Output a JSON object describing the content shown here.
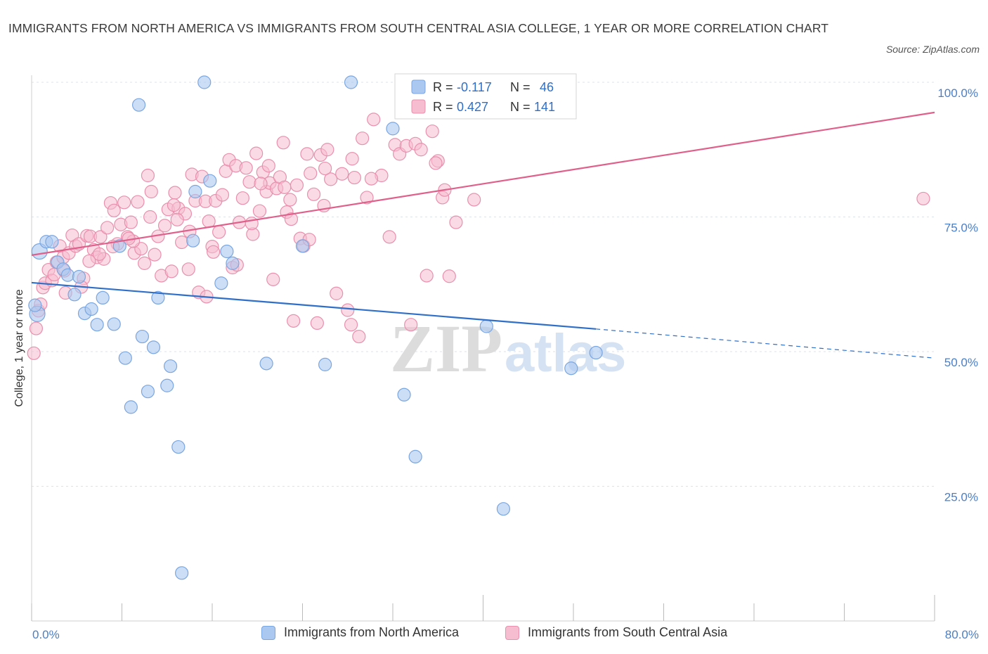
{
  "title": "IMMIGRANTS FROM NORTH AMERICA VS IMMIGRANTS FROM SOUTH CENTRAL ASIA COLLEGE, 1 YEAR OR MORE CORRELATION CHART",
  "source": "Source: ZipAtlas.com",
  "watermark": {
    "zip": "ZIP",
    "atlas": "atlas"
  },
  "colors": {
    "blue_fill": "#aac8f0",
    "blue_stroke": "#7aa6e0",
    "blue_line": "#2f6fc8",
    "pink_fill": "#f6bcd0",
    "pink_stroke": "#e890ad",
    "pink_line": "#e0608c",
    "axis_text": "#4a7fc8",
    "grid": "#dde2ea"
  },
  "legend": {
    "rows": [
      {
        "r_label": "R =",
        "r_value": "-0.117",
        "n_label": "N =",
        "n_value": "46"
      },
      {
        "r_label": "R =",
        "r_value": "0.427",
        "n_label": "N =",
        "n_value": "141"
      }
    ]
  },
  "chart_data": {
    "type": "scatter",
    "title": "IMMIGRANTS FROM NORTH AMERICA VS IMMIGRANTS FROM SOUTH CENTRAL ASIA COLLEGE, 1 YEAR OR MORE CORRELATION CHART",
    "xlabel": "",
    "ylabel": "College, 1 year or more",
    "xlim": [
      0,
      80
    ],
    "ylim": [
      0,
      100
    ],
    "x_tick_labels": [
      "0.0%",
      "80.0%"
    ],
    "y_tick_labels": [
      "100.0%",
      "75.0%",
      "50.0%",
      "25.0%"
    ],
    "y_ticks": [
      100,
      75,
      50,
      25
    ],
    "grid": true,
    "legend_position": "top-center",
    "series": [
      {
        "name": "Immigrants from North America",
        "r": -0.117,
        "n": 46,
        "trend": {
          "x0": 0,
          "y0": 62.8,
          "x1": 50,
          "y1": 54.2,
          "dashed_to_x": 80,
          "dashed_to_y": 48.8
        },
        "points": [
          [
            0.5,
            57.0
          ],
          [
            0.7,
            68.6
          ],
          [
            1.3,
            70.4
          ],
          [
            1.8,
            70.4
          ],
          [
            2.3,
            66.6
          ],
          [
            2.8,
            65.3
          ],
          [
            3.2,
            64.2
          ],
          [
            3.8,
            60.6
          ],
          [
            4.2,
            63.9
          ],
          [
            4.7,
            57.1
          ],
          [
            5.3,
            57.9
          ],
          [
            5.8,
            55.0
          ],
          [
            6.3,
            60.0
          ],
          [
            7.3,
            55.1
          ],
          [
            7.8,
            69.6
          ],
          [
            8.3,
            48.8
          ],
          [
            8.8,
            39.7
          ],
          [
            9.5,
            95.8
          ],
          [
            9.8,
            52.8
          ],
          [
            10.3,
            42.6
          ],
          [
            10.8,
            50.8
          ],
          [
            11.2,
            60.0
          ],
          [
            12.0,
            43.7
          ],
          [
            12.3,
            47.3
          ],
          [
            13.0,
            32.3
          ],
          [
            13.3,
            8.9
          ],
          [
            14.3,
            70.6
          ],
          [
            14.5,
            79.7
          ],
          [
            15.3,
            100.0
          ],
          [
            15.8,
            81.7
          ],
          [
            16.8,
            62.7
          ],
          [
            17.3,
            68.6
          ],
          [
            17.8,
            66.4
          ],
          [
            20.8,
            47.8
          ],
          [
            24.0,
            69.6
          ],
          [
            26.0,
            47.6
          ],
          [
            28.3,
            100.0
          ],
          [
            32.0,
            91.4
          ],
          [
            33.0,
            42.0
          ],
          [
            33.3,
            100.0
          ],
          [
            34.0,
            30.5
          ],
          [
            40.3,
            54.7
          ],
          [
            41.8,
            20.8
          ],
          [
            47.8,
            46.9
          ],
          [
            50.0,
            49.8
          ],
          [
            0.3,
            58.6
          ]
        ]
      },
      {
        "name": "Immigrants from South Central Asia",
        "r": 0.427,
        "n": 141,
        "trend": {
          "x0": 0,
          "y0": 67.9,
          "x1": 80,
          "y1": 94.4
        },
        "points": [
          [
            0.2,
            49.7
          ],
          [
            0.4,
            54.3
          ],
          [
            0.6,
            57.6
          ],
          [
            0.8,
            58.8
          ],
          [
            1.0,
            61.9
          ],
          [
            1.2,
            62.7
          ],
          [
            1.5,
            65.2
          ],
          [
            1.8,
            63.2
          ],
          [
            2.0,
            64.3
          ],
          [
            2.2,
            66.6
          ],
          [
            2.5,
            69.6
          ],
          [
            2.8,
            67.5
          ],
          [
            3.0,
            60.9
          ],
          [
            3.3,
            68.3
          ],
          [
            3.6,
            71.6
          ],
          [
            3.9,
            69.6
          ],
          [
            4.2,
            70.0
          ],
          [
            4.6,
            63.6
          ],
          [
            4.9,
            71.5
          ],
          [
            5.2,
            71.4
          ],
          [
            5.5,
            68.9
          ],
          [
            5.8,
            67.5
          ],
          [
            6.1,
            71.3
          ],
          [
            6.4,
            67.2
          ],
          [
            6.7,
            73.0
          ],
          [
            7.0,
            77.6
          ],
          [
            7.3,
            76.2
          ],
          [
            7.6,
            70.0
          ],
          [
            7.9,
            73.6
          ],
          [
            8.2,
            77.7
          ],
          [
            8.5,
            71.3
          ],
          [
            8.8,
            74.0
          ],
          [
            9.1,
            68.3
          ],
          [
            9.4,
            77.8
          ],
          [
            9.7,
            69.1
          ],
          [
            10.0,
            66.4
          ],
          [
            10.3,
            82.7
          ],
          [
            10.6,
            79.7
          ],
          [
            10.9,
            68.0
          ],
          [
            11.2,
            71.4
          ],
          [
            11.5,
            64.1
          ],
          [
            11.8,
            73.4
          ],
          [
            12.1,
            76.4
          ],
          [
            12.4,
            64.9
          ],
          [
            12.7,
            79.5
          ],
          [
            13.0,
            76.6
          ],
          [
            13.3,
            70.3
          ],
          [
            13.6,
            75.6
          ],
          [
            13.9,
            65.3
          ],
          [
            14.2,
            82.9
          ],
          [
            14.5,
            78.0
          ],
          [
            14.8,
            61.0
          ],
          [
            15.1,
            82.5
          ],
          [
            15.4,
            77.9
          ],
          [
            15.7,
            74.2
          ],
          [
            16.0,
            69.5
          ],
          [
            16.3,
            78.0
          ],
          [
            16.6,
            72.2
          ],
          [
            16.9,
            79.1
          ],
          [
            17.2,
            83.5
          ],
          [
            17.5,
            85.6
          ],
          [
            17.8,
            65.6
          ],
          [
            18.1,
            84.5
          ],
          [
            18.4,
            74.0
          ],
          [
            18.7,
            78.5
          ],
          [
            19.0,
            84.1
          ],
          [
            19.3,
            81.5
          ],
          [
            19.6,
            71.8
          ],
          [
            19.9,
            86.8
          ],
          [
            20.2,
            76.1
          ],
          [
            20.5,
            83.3
          ],
          [
            20.8,
            79.7
          ],
          [
            21.1,
            81.3
          ],
          [
            21.4,
            63.4
          ],
          [
            21.7,
            80.3
          ],
          [
            22.0,
            82.4
          ],
          [
            22.3,
            88.8
          ],
          [
            22.6,
            75.9
          ],
          [
            22.9,
            78.2
          ],
          [
            23.2,
            55.7
          ],
          [
            23.5,
            80.9
          ],
          [
            23.8,
            71.0
          ],
          [
            24.1,
            69.6
          ],
          [
            24.4,
            86.7
          ],
          [
            24.7,
            83.1
          ],
          [
            25.0,
            79.2
          ],
          [
            25.3,
            55.3
          ],
          [
            25.6,
            86.5
          ],
          [
            25.9,
            77.1
          ],
          [
            26.2,
            87.5
          ],
          [
            26.5,
            82.0
          ],
          [
            27.0,
            60.8
          ],
          [
            27.5,
            83.0
          ],
          [
            28.0,
            57.7
          ],
          [
            28.3,
            55.0
          ],
          [
            28.6,
            82.3
          ],
          [
            29.0,
            52.8
          ],
          [
            29.3,
            89.6
          ],
          [
            29.7,
            78.6
          ],
          [
            30.3,
            93.1
          ],
          [
            31.0,
            82.7
          ],
          [
            31.7,
            71.3
          ],
          [
            32.2,
            88.4
          ],
          [
            32.6,
            86.7
          ],
          [
            33.2,
            88.2
          ],
          [
            34.0,
            88.6
          ],
          [
            34.5,
            87.5
          ],
          [
            35.0,
            64.1
          ],
          [
            35.5,
            90.9
          ],
          [
            36.0,
            85.4
          ],
          [
            36.4,
            78.6
          ],
          [
            37.0,
            64.0
          ],
          [
            37.6,
            74.0
          ],
          [
            39.2,
            78.2
          ],
          [
            79.0,
            78.4
          ],
          [
            6.0,
            68.1
          ],
          [
            9.0,
            70.5
          ],
          [
            12.6,
            77.2
          ],
          [
            14.0,
            72.3
          ],
          [
            16.1,
            68.5
          ],
          [
            18.2,
            66.1
          ],
          [
            20.3,
            81.2
          ],
          [
            22.4,
            80.5
          ],
          [
            24.6,
            70.8
          ],
          [
            26.0,
            84.0
          ],
          [
            28.4,
            85.8
          ],
          [
            30.1,
            82.1
          ],
          [
            33.6,
            55.0
          ],
          [
            35.8,
            85.0
          ],
          [
            36.6,
            80.0
          ],
          [
            2.9,
            65.0
          ],
          [
            4.4,
            62.0
          ],
          [
            5.1,
            66.8
          ],
          [
            7.2,
            69.5
          ],
          [
            8.6,
            71.0
          ],
          [
            10.5,
            75.0
          ],
          [
            12.9,
            74.5
          ],
          [
            15.5,
            60.2
          ],
          [
            19.5,
            73.8
          ],
          [
            21.0,
            84.5
          ],
          [
            23.0,
            74.6
          ]
        ]
      }
    ]
  }
}
